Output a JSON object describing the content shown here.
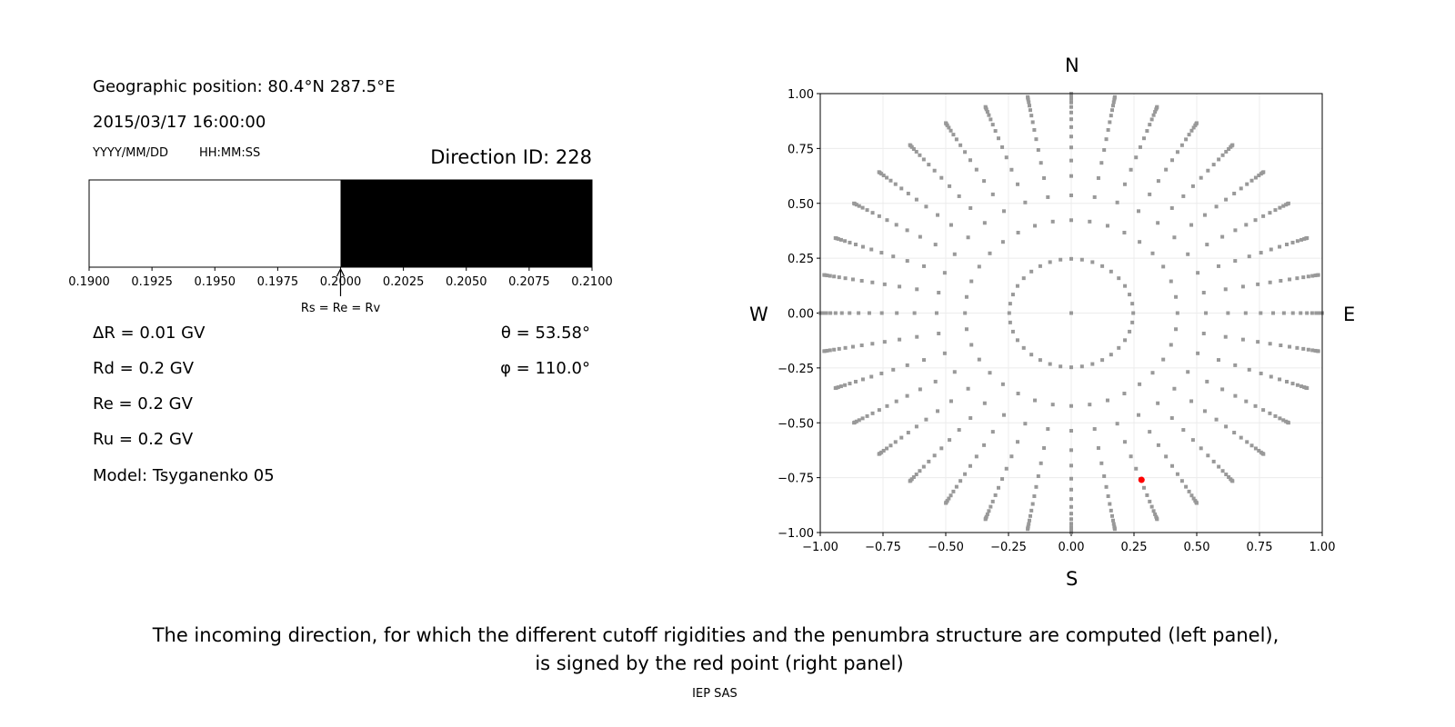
{
  "left_panel": {
    "geo_position": "Geographic position: 80.4°N 287.5°E",
    "datetime": "2015/03/17 16:00:00",
    "date_format": "YYYY/MM/DD",
    "time_format": "HH:MM:SS",
    "direction_id": "Direction ID: 228",
    "marker_label": "Rs = Re = Rv",
    "params_left": [
      "ΔR = 0.01 GV",
      "Rd = 0.2 GV",
      "Re = 0.2 GV",
      "Ru = 0.2 GV",
      "Model: Tsyganenko 05"
    ],
    "params_right": [
      "θ = 53.58°",
      "φ = 110.0°"
    ]
  },
  "compass": {
    "north": "N",
    "south": "S",
    "west": "W",
    "east": "E"
  },
  "caption": {
    "line1": "The incoming direction, for which the different cutoff rigidities and the penumbra structure are computed (left panel),",
    "line2": "is signed by the red point (right panel)",
    "credit": "IEP SAS"
  },
  "chart_data": [
    {
      "type": "bar",
      "xlim": [
        0.19,
        0.21
      ],
      "ticks": [
        "0.1900",
        "0.1925",
        "0.1950",
        "0.1975",
        "0.2000",
        "0.2025",
        "0.2050",
        "0.2075",
        "0.2100"
      ],
      "segments": [
        {
          "from": 0.19,
          "to": 0.2,
          "color": "#ffffff"
        },
        {
          "from": 0.2,
          "to": 0.21,
          "color": "#000000"
        }
      ],
      "marker_at": 0.2
    },
    {
      "type": "scatter",
      "xlim": [
        -1,
        1
      ],
      "ylim": [
        -1,
        1
      ],
      "ticks": [
        "−1.00",
        "−0.75",
        "−0.50",
        "−0.25",
        "0.00",
        "0.25",
        "0.50",
        "0.75",
        "1.00"
      ],
      "tick_values": [
        -1,
        -0.75,
        -0.5,
        -0.25,
        0,
        0.25,
        0.5,
        0.75,
        1
      ],
      "grid": true,
      "directions": {
        "center": true,
        "azimuth_step_deg": 10,
        "cos_zenith": [
          0.969,
          0.906,
          0.844,
          0.781,
          0.719,
          0.656,
          0.594,
          0.531,
          0.469,
          0.406,
          0.344,
          0.281,
          0.219,
          0.156,
          0.094,
          0.031
        ],
        "color": "#999999"
      },
      "selected": {
        "theta_deg": 53.58,
        "phi_deg": 110.0,
        "x": 0.28,
        "y": -0.76,
        "color": "#ff0000"
      }
    }
  ]
}
